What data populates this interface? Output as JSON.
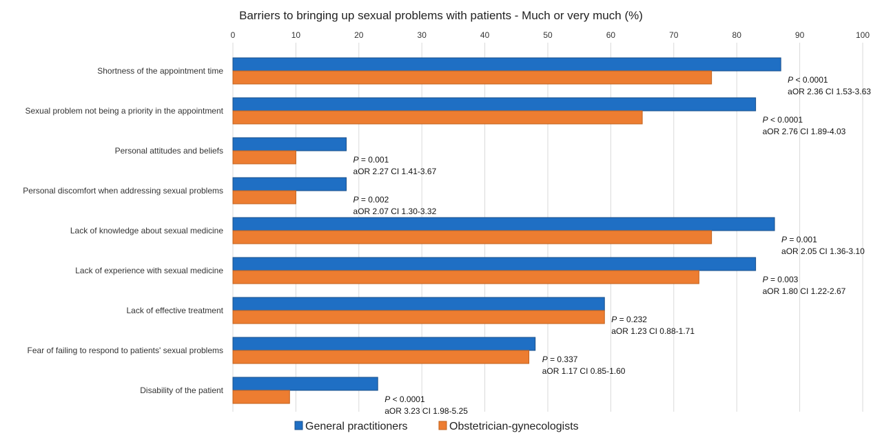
{
  "chart_data": {
    "type": "bar",
    "orientation": "horizontal",
    "title": "Barriers to bringing up sexual problems with patients - Much or very much (%)",
    "xlim": [
      0,
      100
    ],
    "xticks": [
      "0",
      "10",
      "20",
      "30",
      "40",
      "50",
      "60",
      "70",
      "80",
      "90",
      "100"
    ],
    "grid": true,
    "legend_position": "bottom",
    "categories": [
      "Shortness of the appointment time",
      "Sexual problem not being a priority in the appointment",
      "Personal attitudes and beliefs",
      "Personal discomfort when addressing sexual problems",
      "Lack of knowledge about sexual medicine",
      "Lack of experience with sexual medicine",
      "Lack of effective treatment",
      "Fear of failing to respond to patients' sexual problems",
      "Disability of the patient"
    ],
    "series": [
      {
        "name": "General practitioners",
        "color": "#1F6FC4",
        "values": [
          87,
          83,
          18,
          18,
          86,
          83,
          59,
          48,
          23
        ]
      },
      {
        "name": "Obstetrician-gynecologists",
        "color": "#ED7D31",
        "values": [
          76,
          65,
          10,
          10,
          76,
          74,
          59,
          47,
          9
        ]
      }
    ],
    "annotations": [
      {
        "p_label": "P",
        "p_value": "< 0.0001",
        "aor": "aOR 2.36 CI 1.53-3.63"
      },
      {
        "p_label": "P",
        "p_value": "< 0.0001",
        "aor": "aOR 2.76 CI 1.89-4.03"
      },
      {
        "p_label": "P",
        "p_value": "= 0.001",
        "aor": "aOR 2.27 CI 1.41-3.67"
      },
      {
        "p_label": "P",
        "p_value": "= 0.002",
        "aor": "aOR 2.07 CI 1.30-3.32"
      },
      {
        "p_label": "P",
        "p_value": "= 0.001",
        "aor": "aOR 2.05 CI 1.36-3.10"
      },
      {
        "p_label": "P",
        "p_value": "= 0.003",
        "aor": "aOR 1.80 CI 1.22-2.67"
      },
      {
        "p_label": "P",
        "p_value": "= 0.232",
        "aor": "aOR 1.23 CI 0.88-1.71"
      },
      {
        "p_label": "P",
        "p_value": "= 0.337",
        "aor": "aOR 1.17 CI 0.85-1.60"
      },
      {
        "p_label": "P",
        "p_value": "< 0.0001",
        "aor": "aOR 3.23 CI 1.98-5.25"
      }
    ]
  }
}
